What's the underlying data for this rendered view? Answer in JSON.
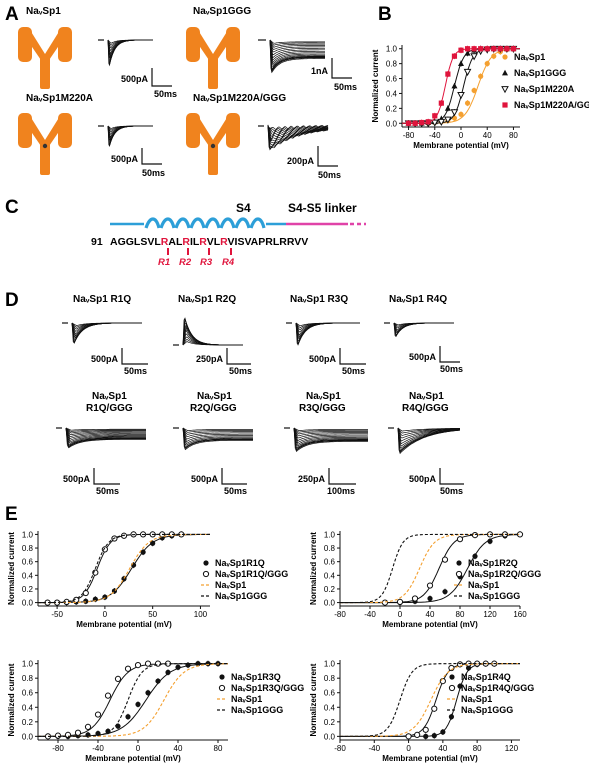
{
  "panels": {
    "A": {
      "label": "A",
      "items": [
        {
          "title": "NaᵥSp1",
          "scale_i": "500pA",
          "scale_t": "50ms"
        },
        {
          "title": "NaᵥSp1GGG",
          "scale_i": "1nA",
          "scale_t": "50ms"
        },
        {
          "title": "NaᵥSp1M220A",
          "scale_i": "500pA",
          "scale_t": "50ms"
        },
        {
          "title": "NaᵥSp1M220A/GGG",
          "scale_i": "200pA",
          "scale_t": "50ms"
        }
      ]
    },
    "B": {
      "label": "B"
    },
    "C": {
      "label": "C",
      "s4_label": "S4",
      "linker_label": "S4-S5 linker",
      "seq_start": "91",
      "seq_parts": [
        "AGGLSVL",
        "R",
        "AL",
        "R",
        "IL",
        "R",
        "VL",
        "R",
        "VISVAPRLRRVV"
      ],
      "arg_labels": [
        "R1",
        "R2",
        "R3",
        "R4"
      ]
    },
    "D": {
      "label": "D",
      "items": [
        {
          "title": "NaᵥSp1 R1Q",
          "scale_i": "500pA",
          "scale_t": "50ms"
        },
        {
          "title": "NaᵥSp1 R2Q",
          "scale_i": "250pA",
          "scale_t": "50ms"
        },
        {
          "title": "NaᵥSp1 R3Q",
          "scale_i": "500pA",
          "scale_t": "50ms"
        },
        {
          "title": "NaᵥSp1 R4Q",
          "scale_i": "500pA",
          "scale_t": "50ms"
        },
        {
          "title1": "NaᵥSp1",
          "title2": "R1Q/GGG",
          "scale_i": "500pA",
          "scale_t": "50ms"
        },
        {
          "title1": "NaᵥSp1",
          "title2": "R2Q/GGG",
          "scale_i": "500pA",
          "scale_t": "50ms"
        },
        {
          "title1": "NaᵥSp1",
          "title2": "R3Q/GGG",
          "scale_i": "250pA",
          "scale_t": "100ms"
        },
        {
          "title1": "NaᵥSp1",
          "title2": "R4Q/GGG",
          "scale_i": "500pA",
          "scale_t": "50ms"
        }
      ]
    },
    "E": {
      "label": "E"
    }
  },
  "chart_data": [
    {
      "id": "B",
      "type": "scatter",
      "xlabel": "Membrane potential (mV)",
      "ylabel": "Normalized current",
      "xlim": [
        -90,
        90
      ],
      "ylim": [
        0,
        1
      ],
      "xticks": [
        -80,
        -40,
        0,
        40,
        80
      ],
      "yticks": [
        0.0,
        0.2,
        0.4,
        0.6,
        0.8,
        1.0
      ],
      "legend_position": "right",
      "series": [
        {
          "name": "NaᵥSp1",
          "color": "#f4a030",
          "marker": "circle-filled",
          "v_half": 26,
          "k": 10,
          "x": [
            -80,
            -70,
            -60,
            -50,
            -40,
            -30,
            -20,
            -10,
            0,
            10,
            20,
            30,
            40,
            50,
            60,
            70,
            80
          ],
          "y": [
            0.0,
            0.0,
            0.0,
            0.0,
            0.01,
            0.02,
            0.04,
            0.07,
            0.12,
            0.27,
            0.44,
            0.63,
            0.8,
            0.9,
            0.96,
            0.99,
            1.0
          ]
        },
        {
          "name": "NaᵥSp1GGG",
          "color": "#111111",
          "marker": "triangle-filled",
          "v_half": -10,
          "k": 7,
          "x": [
            -80,
            -70,
            -60,
            -50,
            -40,
            -30,
            -20,
            -10,
            0,
            10,
            20,
            30,
            40,
            50,
            60,
            70,
            80
          ],
          "y": [
            0.0,
            0.0,
            0.0,
            0.01,
            0.02,
            0.06,
            0.2,
            0.5,
            0.8,
            0.94,
            0.98,
            1.0,
            1.0,
            1.0,
            1.0,
            1.0,
            1.0
          ]
        },
        {
          "name": "NaᵥSp1M220A",
          "color": "#111111",
          "marker": "triangle-open",
          "v_half": 4,
          "k": 7,
          "x": [
            -80,
            -70,
            -60,
            -50,
            -40,
            -30,
            -20,
            -10,
            0,
            10,
            20,
            30,
            40,
            50,
            60,
            70,
            80
          ],
          "y": [
            0.0,
            0.0,
            0.0,
            0.0,
            0.01,
            0.02,
            0.05,
            0.15,
            0.38,
            0.69,
            0.9,
            0.97,
            0.99,
            1.0,
            1.0,
            1.0,
            1.0
          ]
        },
        {
          "name": "NaᵥSp1M220A/GGG",
          "color": "#e0143c",
          "marker": "square-filled",
          "v_half": -24,
          "k": 6,
          "x": [
            -80,
            -70,
            -60,
            -50,
            -40,
            -30,
            -20,
            -10,
            0,
            10,
            20,
            30,
            40,
            50,
            60,
            70,
            80
          ],
          "y": [
            0.0,
            0.0,
            0.01,
            0.02,
            0.1,
            0.27,
            0.66,
            0.9,
            0.98,
            1.0,
            1.0,
            1.0,
            1.0,
            1.0,
            1.0,
            1.0,
            1.0
          ]
        }
      ]
    },
    {
      "id": "E1",
      "type": "scatter",
      "xlabel": "Membrane potential (mV)",
      "ylabel": "Normalized current",
      "xlim": [
        -70,
        110
      ],
      "ylim": [
        0,
        1
      ],
      "xticks": [
        -50,
        0,
        50,
        100
      ],
      "yticks": [
        0.0,
        0.2,
        0.4,
        0.6,
        0.8,
        1.0
      ],
      "legend_position": "right",
      "series": [
        {
          "name": "NaᵥSp1R1Q",
          "color": "#111111",
          "marker": "circle-filled",
          "v_half": 28,
          "k": 11,
          "x": [
            -60,
            -50,
            -40,
            -30,
            -20,
            -10,
            0,
            10,
            20,
            30,
            40,
            50,
            60,
            70,
            80
          ],
          "y": [
            0.0,
            0.0,
            0.0,
            0.01,
            0.02,
            0.05,
            0.08,
            0.17,
            0.35,
            0.55,
            0.74,
            0.87,
            0.95,
            0.98,
            1.0
          ]
        },
        {
          "name": "NaᵥSp1R1Q/GGG",
          "color": "#111111",
          "marker": "circle-open",
          "v_half": -8,
          "k": 7,
          "x": [
            -60,
            -50,
            -40,
            -30,
            -20,
            -10,
            0,
            10,
            20,
            30,
            40,
            50,
            60,
            70,
            80
          ],
          "y": [
            0.0,
            0.0,
            0.01,
            0.04,
            0.14,
            0.44,
            0.78,
            0.94,
            0.98,
            1.0,
            1.0,
            1.0,
            1.0,
            1.0,
            1.0
          ]
        },
        {
          "name": "NaᵥSp1",
          "color": "#f4a030",
          "line": "dashed",
          "v_half": 26,
          "k": 10
        },
        {
          "name": "NaᵥSp1GGG",
          "color": "#111111",
          "line": "dashed",
          "v_half": -10,
          "k": 7
        }
      ]
    },
    {
      "id": "E2",
      "type": "scatter",
      "xlabel": "Membrane potential (mV)",
      "ylabel": "Normalized current",
      "xlim": [
        -80,
        160
      ],
      "ylim": [
        0,
        1
      ],
      "xticks": [
        -80,
        -40,
        0,
        40,
        80,
        120,
        160
      ],
      "yticks": [
        0.0,
        0.2,
        0.4,
        0.6,
        0.8,
        1.0
      ],
      "legend_position": "right",
      "series": [
        {
          "name": "NaᵥSp1R2Q",
          "color": "#111111",
          "marker": "circle-filled",
          "v_half": 90,
          "k": 12,
          "x": [
            0,
            20,
            40,
            60,
            80,
            100,
            120,
            140,
            160
          ],
          "y": [
            0.0,
            0.02,
            0.06,
            0.16,
            0.38,
            0.68,
            0.9,
            0.98,
            1.0
          ]
        },
        {
          "name": "NaᵥSp1R2Q/GGG",
          "color": "#111111",
          "marker": "circle-open",
          "v_half": 52,
          "k": 10,
          "x": [
            -20,
            0,
            20,
            40,
            60,
            80,
            100,
            120,
            140,
            160
          ],
          "y": [
            0.0,
            0.01,
            0.06,
            0.25,
            0.63,
            0.93,
            0.99,
            1.0,
            1.0,
            1.0
          ]
        },
        {
          "name": "NaᵥSp1",
          "color": "#f4a030",
          "line": "dashed",
          "v_half": 26,
          "k": 10
        },
        {
          "name": "NaᵥSp1GGG",
          "color": "#111111",
          "line": "dashed",
          "v_half": -10,
          "k": 7
        }
      ]
    },
    {
      "id": "E3",
      "type": "scatter",
      "xlabel": "Membrane potential (mV)",
      "ylabel": "Normalized current",
      "xlim": [
        -100,
        90
      ],
      "ylim": [
        0,
        1
      ],
      "xticks": [
        -80,
        -40,
        0,
        40,
        80
      ],
      "yticks": [
        0.0,
        0.2,
        0.4,
        0.6,
        0.8,
        1.0
      ],
      "legend_position": "right",
      "series": [
        {
          "name": "NaᵥSp1R3Q",
          "color": "#111111",
          "marker": "circle-filled",
          "v_half": 8,
          "k": 12,
          "x": [
            -90,
            -80,
            -70,
            -60,
            -50,
            -40,
            -30,
            -20,
            -10,
            0,
            10,
            20,
            30,
            40,
            50,
            60,
            70,
            80
          ],
          "y": [
            0.0,
            0.0,
            0.0,
            0.01,
            0.02,
            0.04,
            0.07,
            0.14,
            0.27,
            0.44,
            0.6,
            0.76,
            0.88,
            0.95,
            0.98,
            1.0,
            1.0,
            1.0
          ]
        },
        {
          "name": "NaᵥSp1R3Q/GGG",
          "color": "#111111",
          "marker": "circle-open",
          "v_half": -28,
          "k": 9,
          "x": [
            -90,
            -80,
            -70,
            -60,
            -50,
            -40,
            -30,
            -20,
            -10,
            0,
            10,
            20,
            30
          ],
          "y": [
            0.0,
            0.01,
            0.02,
            0.05,
            0.13,
            0.3,
            0.56,
            0.79,
            0.93,
            0.98,
            1.0,
            1.0,
            1.0
          ]
        },
        {
          "name": "NaᵥSp1",
          "color": "#f4a030",
          "line": "dashed",
          "v_half": 26,
          "k": 10
        },
        {
          "name": "NaᵥSp1GGG",
          "color": "#111111",
          "line": "dashed",
          "v_half": -10,
          "k": 7
        }
      ]
    },
    {
      "id": "E4",
      "type": "scatter",
      "xlabel": "Membrane potential (mV)",
      "ylabel": "Normalized current",
      "xlim": [
        -80,
        130
      ],
      "ylim": [
        0,
        1
      ],
      "xticks": [
        -80,
        -40,
        0,
        40,
        80,
        120
      ],
      "yticks": [
        0.0,
        0.2,
        0.4,
        0.6,
        0.8,
        1.0
      ],
      "legend_position": "right",
      "series": [
        {
          "name": "NaᵥSp1R4Q",
          "color": "#111111",
          "marker": "circle-filled",
          "v_half": 56,
          "k": 6,
          "x": [
            20,
            30,
            40,
            50,
            60,
            70,
            80,
            90,
            100
          ],
          "y": [
            0.0,
            0.01,
            0.06,
            0.27,
            0.69,
            0.94,
            0.99,
            1.0,
            1.0
          ]
        },
        {
          "name": "NaᵥSp1R4Q/GGG",
          "color": "#111111",
          "marker": "circle-open",
          "v_half": 32,
          "k": 7,
          "x": [
            0,
            10,
            20,
            30,
            40,
            50,
            60,
            70,
            80,
            90,
            100
          ],
          "y": [
            0.0,
            0.02,
            0.09,
            0.38,
            0.76,
            0.94,
            0.99,
            1.0,
            1.0,
            1.0,
            1.0
          ]
        },
        {
          "name": "NaᵥSp1",
          "color": "#f4a030",
          "line": "dashed",
          "v_half": 26,
          "k": 10
        },
        {
          "name": "NaᵥSp1GGG",
          "color": "#111111",
          "line": "dashed",
          "v_half": -10,
          "k": 7
        }
      ]
    }
  ]
}
